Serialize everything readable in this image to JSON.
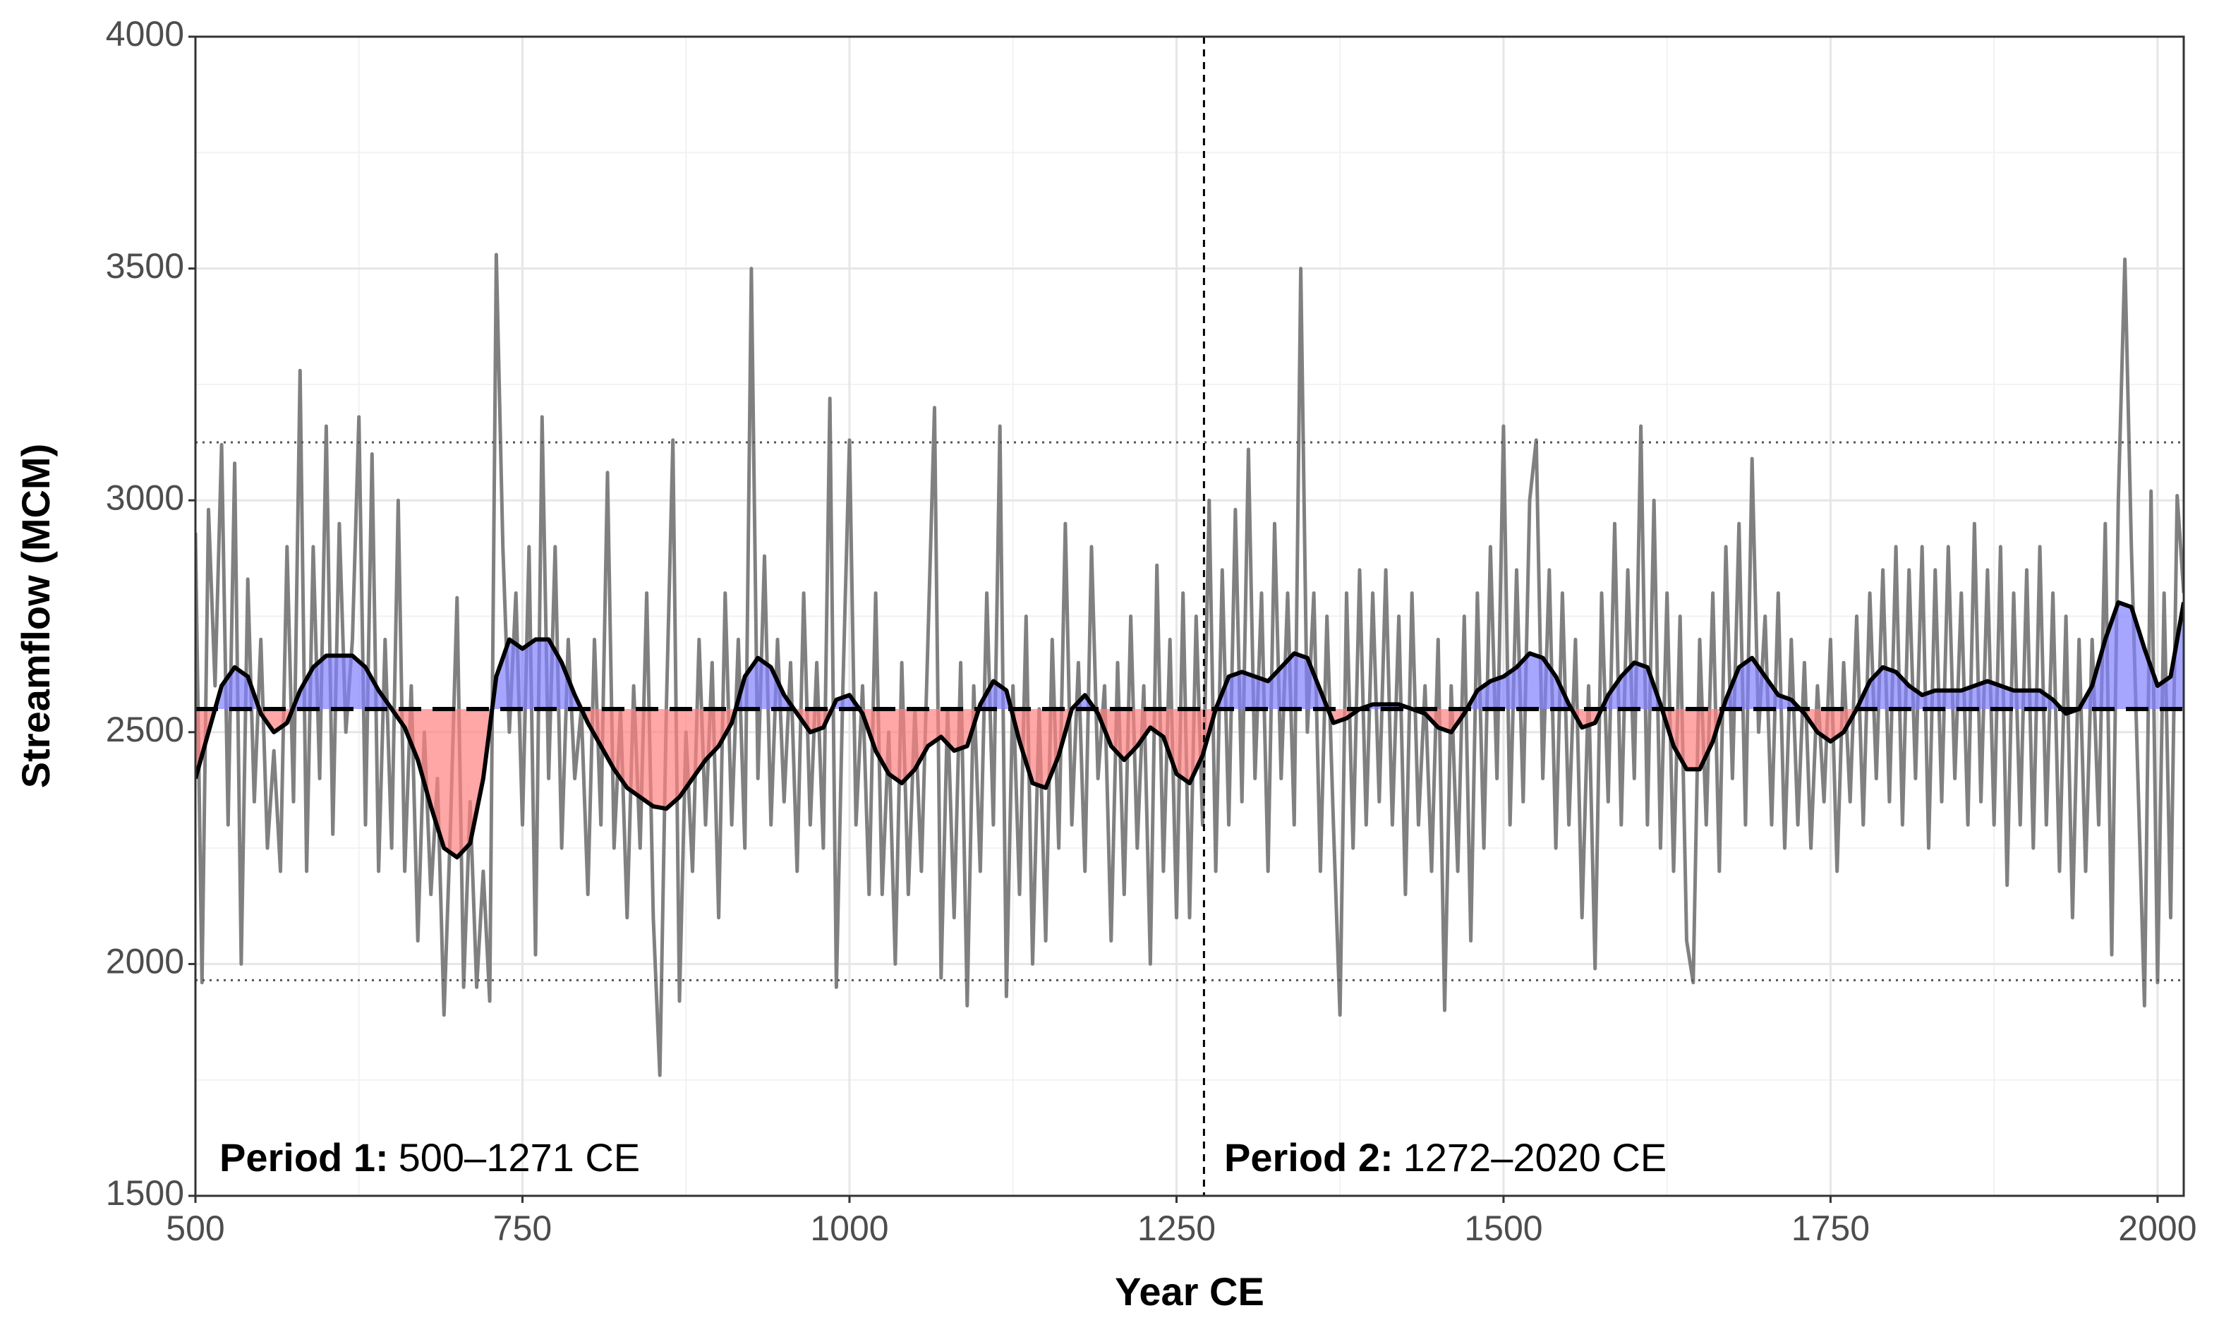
{
  "chart_data": {
    "type": "line",
    "xlabel": "Year CE",
    "ylabel": "Streamflow (MCM)",
    "xlim": [
      500,
      2020
    ],
    "ylim": [
      1500,
      4000
    ],
    "xticks": [
      500,
      750,
      1000,
      1250,
      1500,
      1750,
      2000
    ],
    "yticks": [
      1500,
      2000,
      2500,
      3000,
      3500,
      4000
    ],
    "x_minor_ticks": [
      625,
      875,
      1125,
      1375,
      1625,
      1875
    ],
    "y_minor_ticks": [
      1750,
      2250,
      2750,
      3250,
      3750
    ],
    "grid": true,
    "series": [
      {
        "color": "#808080",
        "x": [
          500,
          505,
          510,
          515,
          520,
          525,
          530,
          535,
          540,
          545,
          550,
          555,
          560,
          565,
          570,
          575,
          580,
          585,
          590,
          595,
          600,
          605,
          610,
          615,
          620,
          625,
          630,
          635,
          640,
          645,
          650,
          655,
          660,
          665,
          670,
          675,
          680,
          685,
          690,
          695,
          700,
          705,
          710,
          715,
          720,
          725,
          730,
          735,
          740,
          745,
          750,
          755,
          760,
          765,
          770,
          775,
          780,
          785,
          790,
          795,
          800,
          805,
          810,
          815,
          820,
          825,
          830,
          835,
          840,
          845,
          850,
          855,
          860,
          865,
          870,
          875,
          880,
          885,
          890,
          895,
          900,
          905,
          910,
          915,
          920,
          925,
          930,
          935,
          940,
          945,
          950,
          955,
          960,
          965,
          970,
          975,
          980,
          985,
          990,
          995,
          1000,
          1005,
          1010,
          1015,
          1020,
          1025,
          1030,
          1035,
          1040,
          1045,
          1050,
          1055,
          1060,
          1065,
          1070,
          1075,
          1080,
          1085,
          1090,
          1095,
          1100,
          1105,
          1110,
          1115,
          1120,
          1125,
          1130,
          1135,
          1140,
          1145,
          1150,
          1155,
          1160,
          1165,
          1170,
          1175,
          1180,
          1185,
          1190,
          1195,
          1200,
          1205,
          1210,
          1215,
          1220,
          1225,
          1230,
          1235,
          1240,
          1245,
          1250,
          1255,
          1260,
          1265,
          1270,
          1275,
          1280,
          1285,
          1290,
          1295,
          1300,
          1305,
          1310,
          1315,
          1320,
          1325,
          1330,
          1335,
          1340,
          1345,
          1350,
          1355,
          1360,
          1365,
          1370,
          1375,
          1380,
          1385,
          1390,
          1395,
          1400,
          1405,
          1410,
          1415,
          1420,
          1425,
          1430,
          1435,
          1440,
          1445,
          1450,
          1455,
          1460,
          1465,
          1470,
          1475,
          1480,
          1485,
          1490,
          1495,
          1500,
          1505,
          1510,
          1515,
          1520,
          1525,
          1530,
          1535,
          1540,
          1545,
          1550,
          1555,
          1560,
          1565,
          1570,
          1575,
          1580,
          1585,
          1590,
          1595,
          1600,
          1605,
          1610,
          1615,
          1620,
          1625,
          1630,
          1635,
          1640,
          1645,
          1650,
          1655,
          1660,
          1665,
          1670,
          1675,
          1680,
          1685,
          1690,
          1695,
          1700,
          1705,
          1710,
          1715,
          1720,
          1725,
          1730,
          1735,
          1740,
          1745,
          1750,
          1755,
          1760,
          1765,
          1770,
          1775,
          1780,
          1785,
          1790,
          1795,
          1800,
          1805,
          1810,
          1815,
          1820,
          1825,
          1830,
          1835,
          1840,
          1845,
          1850,
          1855,
          1860,
          1865,
          1870,
          1875,
          1880,
          1885,
          1890,
          1895,
          1900,
          1905,
          1910,
          1915,
          1920,
          1925,
          1930,
          1935,
          1940,
          1945,
          1950,
          1955,
          1960,
          1965,
          1970,
          1975,
          1980,
          1985,
          1990,
          1995,
          2000,
          2005,
          2010,
          2015,
          2020
        ],
        "values": [
          2930,
          1960,
          2980,
          2600,
          3120,
          2300,
          3080,
          2000,
          2830,
          2350,
          2700,
          2250,
          2460,
          2200,
          2900,
          2350,
          3280,
          2200,
          2900,
          2400,
          3160,
          2280,
          2950,
          2500,
          2700,
          3180,
          2300,
          3100,
          2200,
          2700,
          2250,
          3000,
          2200,
          2600,
          2050,
          2500,
          2150,
          2400,
          1890,
          2300,
          2790,
          1950,
          2350,
          1950,
          2200,
          1920,
          3530,
          2900,
          2500,
          2800,
          2300,
          2900,
          2020,
          3180,
          2400,
          2900,
          2250,
          2700,
          2400,
          2550,
          2150,
          2700,
          2300,
          3060,
          2250,
          2550,
          2100,
          2600,
          2250,
          2800,
          2100,
          1760,
          2550,
          3130,
          1920,
          2500,
          2200,
          2700,
          2300,
          2650,
          2100,
          2800,
          2300,
          2700,
          2250,
          3500,
          2400,
          2880,
          2300,
          2700,
          2350,
          2650,
          2200,
          2800,
          2300,
          2650,
          2250,
          3220,
          1950,
          2600,
          3130,
          2300,
          2600,
          2150,
          2800,
          2150,
          2500,
          2000,
          2650,
          2150,
          2550,
          2200,
          2700,
          3200,
          1970,
          2550,
          2100,
          2650,
          1910,
          2600,
          2200,
          2800,
          2300,
          3160,
          1930,
          2600,
          2150,
          2750,
          2000,
          2550,
          2050,
          2700,
          2250,
          2950,
          2300,
          2650,
          2200,
          2900,
          2400,
          2600,
          2050,
          2650,
          2150,
          2750,
          2250,
          2600,
          2000,
          2860,
          2200,
          2700,
          2100,
          2800,
          2100,
          2750,
          2300,
          3000,
          2200,
          2850,
          2300,
          2980,
          2350,
          3110,
          2400,
          2800,
          2200,
          2950,
          2400,
          2800,
          2300,
          3500,
          2500,
          2800,
          2200,
          2750,
          2300,
          1890,
          2800,
          2250,
          2850,
          2300,
          2800,
          2350,
          2850,
          2300,
          2750,
          2150,
          2800,
          2300,
          2600,
          2200,
          2700,
          1900,
          2600,
          2200,
          2750,
          2050,
          2800,
          2250,
          2900,
          2400,
          3160,
          2300,
          2850,
          2350,
          3000,
          3130,
          2400,
          2850,
          2250,
          2800,
          2300,
          2700,
          2100,
          2600,
          1990,
          2800,
          2350,
          2950,
          2300,
          2850,
          2400,
          3160,
          2300,
          3000,
          2250,
          2800,
          2200,
          2750,
          2050,
          1960,
          2700,
          2300,
          2800,
          2200,
          2900,
          2400,
          2950,
          2300,
          3090,
          2500,
          2750,
          2300,
          2800,
          2250,
          2700,
          2300,
          2650,
          2250,
          2600,
          2350,
          2700,
          2200,
          2650,
          2350,
          2750,
          2300,
          2800,
          2400,
          2850,
          2350,
          2900,
          2300,
          2850,
          2400,
          2900,
          2250,
          2850,
          2350,
          2900,
          2400,
          2800,
          2300,
          2950,
          2350,
          2850,
          2300,
          2900,
          2170,
          2800,
          2300,
          2850,
          2250,
          2900,
          2300,
          2800,
          2200,
          2750,
          2100,
          2700,
          2200,
          2700,
          2300,
          2950,
          2020,
          3000,
          3520,
          2900,
          2400,
          1910,
          3020,
          1960,
          2800,
          2100,
          3010,
          2800
        ]
      },
      {
        "color": "#000000",
        "x": [
          500,
          510,
          520,
          530,
          540,
          550,
          560,
          570,
          580,
          590,
          600,
          610,
          620,
          630,
          640,
          650,
          660,
          670,
          680,
          690,
          700,
          710,
          720,
          730,
          740,
          750,
          760,
          770,
          780,
          790,
          800,
          810,
          820,
          830,
          840,
          850,
          860,
          870,
          880,
          890,
          900,
          910,
          920,
          930,
          940,
          950,
          960,
          970,
          980,
          990,
          1000,
          1010,
          1020,
          1030,
          1040,
          1050,
          1060,
          1070,
          1080,
          1090,
          1100,
          1110,
          1120,
          1130,
          1140,
          1150,
          1160,
          1170,
          1180,
          1190,
          1200,
          1210,
          1220,
          1230,
          1240,
          1250,
          1260,
          1270,
          1280,
          1290,
          1300,
          1310,
          1320,
          1330,
          1340,
          1350,
          1360,
          1370,
          1380,
          1390,
          1400,
          1410,
          1420,
          1430,
          1440,
          1450,
          1460,
          1470,
          1480,
          1490,
          1500,
          1510,
          1520,
          1530,
          1540,
          1550,
          1560,
          1570,
          1580,
          1590,
          1600,
          1610,
          1620,
          1630,
          1640,
          1650,
          1660,
          1670,
          1680,
          1690,
          1700,
          1710,
          1720,
          1730,
          1740,
          1750,
          1760,
          1770,
          1780,
          1790,
          1800,
          1810,
          1820,
          1830,
          1840,
          1850,
          1860,
          1870,
          1880,
          1890,
          1900,
          1910,
          1920,
          1930,
          1940,
          1950,
          1960,
          1970,
          1980,
          1990,
          2000,
          2010,
          2020
        ],
        "values": [
          2400,
          2500,
          2600,
          2640,
          2620,
          2540,
          2500,
          2520,
          2590,
          2640,
          2665,
          2665,
          2665,
          2640,
          2590,
          2550,
          2510,
          2440,
          2340,
          2250,
          2230,
          2260,
          2400,
          2620,
          2700,
          2680,
          2700,
          2700,
          2650,
          2580,
          2520,
          2470,
          2420,
          2380,
          2360,
          2340,
          2335,
          2360,
          2400,
          2440,
          2470,
          2520,
          2620,
          2660,
          2640,
          2580,
          2540,
          2500,
          2510,
          2570,
          2580,
          2540,
          2460,
          2410,
          2390,
          2420,
          2470,
          2490,
          2460,
          2470,
          2560,
          2610,
          2590,
          2480,
          2390,
          2380,
          2450,
          2550,
          2580,
          2540,
          2470,
          2440,
          2470,
          2510,
          2490,
          2410,
          2390,
          2450,
          2550,
          2620,
          2630,
          2620,
          2610,
          2640,
          2670,
          2660,
          2590,
          2520,
          2530,
          2550,
          2560,
          2560,
          2560,
          2550,
          2540,
          2510,
          2500,
          2540,
          2590,
          2610,
          2620,
          2640,
          2670,
          2660,
          2620,
          2560,
          2510,
          2520,
          2580,
          2620,
          2650,
          2640,
          2560,
          2470,
          2420,
          2420,
          2480,
          2570,
          2640,
          2660,
          2620,
          2580,
          2570,
          2540,
          2500,
          2480,
          2500,
          2550,
          2610,
          2640,
          2630,
          2600,
          2580,
          2590,
          2590,
          2590,
          2600,
          2610,
          2600,
          2590,
          2590,
          2590,
          2570,
          2540,
          2550,
          2600,
          2700,
          2780,
          2770,
          2680,
          2600,
          2620,
          2780
        ]
      }
    ],
    "fill_above_color": "#8080ff",
    "fill_below_color": "#ff8080",
    "mean_line": 2550,
    "dotted_lines": [
      3125,
      1965
    ],
    "vline": 1271,
    "annotations": [
      {
        "bold": "Period 1:",
        "text": "500–1271 CE"
      },
      {
        "bold": "Period 2:",
        "text": "1272–2020 CE"
      }
    ]
  }
}
